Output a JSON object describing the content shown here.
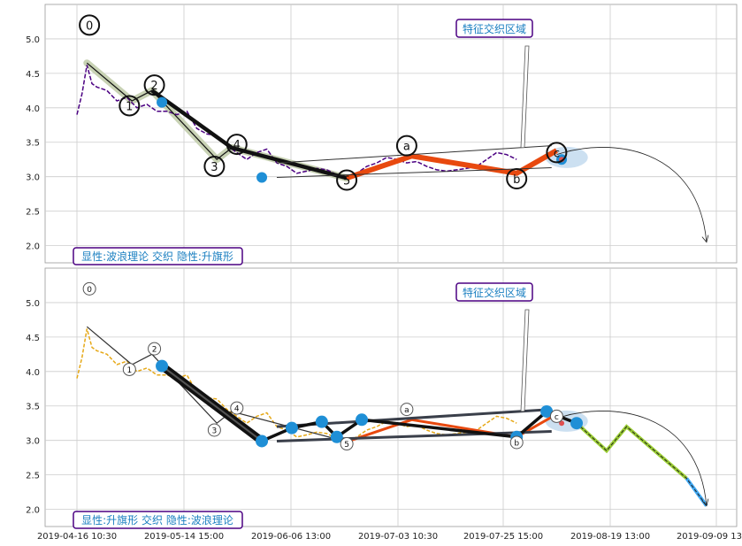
{
  "x_ticks": [
    "2019-04-16 10:30",
    "2019-05-14 15:00",
    "2019-06-06 13:00",
    "2019-07-03 10:30",
    "2019-07-25 15:00",
    "2019-08-19 13:00",
    "2019-09-09 13:00"
  ],
  "colors": {
    "top_price": "#4b0082",
    "bottom_price": "#e6a817",
    "wave_highlight": "#c8d2b4",
    "trend": "#111111",
    "wave_orange": "#e8490f",
    "marker_blue": "#1f8fd6",
    "label_text": "#1a7fc1",
    "label_border": "#4b0082",
    "future_green": "#9acd32",
    "future_blue": "#3fa9f5",
    "highlight_ellipse": "#aacbe8",
    "grid": "#cccccc"
  },
  "chart_data": [
    {
      "type": "line",
      "panel": "top",
      "annotation_box": "特征交织区域",
      "legend_box": "显性:波浪理论 交织 隐性:升旗形",
      "ylim": [
        1.75,
        5.5
      ],
      "yticks": [
        2.0,
        2.5,
        3.0,
        3.5,
        4.0,
        4.5,
        5.0
      ],
      "grid": true,
      "series": [
        {
          "values": [
            [
              0,
              3.9
            ],
            [
              1,
              4.2
            ],
            [
              2,
              4.62
            ],
            [
              3,
              4.35
            ],
            [
              4,
              4.3
            ],
            [
              6,
              4.25
            ],
            [
              8,
              4.1
            ],
            [
              10,
              4.15
            ],
            [
              12,
              4.0
            ],
            [
              14,
              4.05
            ],
            [
              16,
              3.95
            ],
            [
              18,
              3.95
            ],
            [
              20,
              3.9
            ],
            [
              22,
              3.95
            ],
            [
              24,
              3.7
            ],
            [
              26,
              3.62
            ],
            [
              28,
              3.6
            ],
            [
              30,
              3.45
            ],
            [
              32,
              3.35
            ],
            [
              34,
              3.25
            ],
            [
              36,
              3.35
            ],
            [
              38,
              3.4
            ],
            [
              40,
              3.2
            ],
            [
              42,
              3.15
            ],
            [
              44,
              3.05
            ],
            [
              46,
              3.08
            ],
            [
              48,
              3.12
            ],
            [
              50,
              3.1
            ],
            [
              52,
              3.03
            ],
            [
              54,
              2.98
            ],
            [
              56,
              3.05
            ],
            [
              58,
              3.15
            ],
            [
              60,
              3.2
            ],
            [
              62,
              3.28
            ],
            [
              64,
              3.25
            ],
            [
              66,
              3.2
            ],
            [
              68,
              3.22
            ],
            [
              70,
              3.15
            ],
            [
              72,
              3.1
            ],
            [
              74,
              3.08
            ],
            [
              76,
              3.1
            ],
            [
              78,
              3.12
            ],
            [
              80,
              3.15
            ],
            [
              82,
              3.25
            ],
            [
              84,
              3.35
            ],
            [
              86,
              3.32
            ],
            [
              88,
              3.25
            ]
          ]
        }
      ],
      "wave_points": {
        "labels": [
          "0",
          "1",
          "2",
          "3",
          "4",
          "5",
          "a",
          "b",
          "c"
        ],
        "x": [
          2,
          11,
          15,
          28,
          31,
          54,
          67,
          88,
          96
        ],
        "y": [
          4.65,
          4.1,
          4.25,
          3.25,
          3.42,
          2.98,
          3.3,
          3.05,
          3.38
        ]
      },
      "label_positions": {
        "x": [
          2.5,
          10.5,
          15.5,
          27.5,
          32,
          54,
          66,
          88,
          96
        ],
        "y": [
          5.2,
          4.03,
          4.33,
          3.15,
          3.47,
          2.95,
          3.45,
          2.97,
          3.35
        ]
      },
      "channel": {
        "upper": [
          [
            40,
            3.2
          ],
          [
            95,
            3.45
          ]
        ],
        "lower": [
          [
            40,
            2.99
          ],
          [
            95,
            3.13
          ]
        ]
      },
      "markers": [
        [
          17,
          4.08
        ],
        [
          37,
          2.99
        ],
        [
          97,
          3.25
        ]
      ],
      "projection": {
        "from": [
          96,
          3.32
        ],
        "to": [
          126,
          2.05
        ]
      }
    },
    {
      "type": "line",
      "panel": "bottom",
      "annotation_box": "特征交织区域",
      "legend_box": "显性:升旗形 交织 隐性:波浪理论",
      "ylim": [
        1.75,
        5.5
      ],
      "yticks": [
        2.0,
        2.5,
        3.0,
        3.5,
        4.0,
        4.5,
        5.0
      ],
      "grid": true,
      "series": [
        {
          "values": [
            [
              0,
              3.9
            ],
            [
              1,
              4.2
            ],
            [
              2,
              4.62
            ],
            [
              3,
              4.35
            ],
            [
              4,
              4.3
            ],
            [
              6,
              4.25
            ],
            [
              8,
              4.1
            ],
            [
              10,
              4.15
            ],
            [
              12,
              4.0
            ],
            [
              14,
              4.05
            ],
            [
              16,
              3.95
            ],
            [
              18,
              3.95
            ],
            [
              20,
              3.9
            ],
            [
              22,
              3.95
            ],
            [
              24,
              3.7
            ],
            [
              26,
              3.62
            ],
            [
              28,
              3.6
            ],
            [
              30,
              3.45
            ],
            [
              32,
              3.35
            ],
            [
              34,
              3.25
            ],
            [
              36,
              3.35
            ],
            [
              38,
              3.4
            ],
            [
              40,
              3.2
            ],
            [
              42,
              3.15
            ],
            [
              44,
              3.05
            ],
            [
              46,
              3.08
            ],
            [
              48,
              3.12
            ],
            [
              50,
              3.1
            ],
            [
              52,
              3.03
            ],
            [
              54,
              2.98
            ],
            [
              56,
              3.05
            ],
            [
              58,
              3.15
            ],
            [
              60,
              3.2
            ],
            [
              62,
              3.28
            ],
            [
              64,
              3.25
            ],
            [
              66,
              3.2
            ],
            [
              68,
              3.22
            ],
            [
              70,
              3.15
            ],
            [
              72,
              3.1
            ],
            [
              74,
              3.08
            ],
            [
              76,
              3.1
            ],
            [
              78,
              3.12
            ],
            [
              80,
              3.15
            ],
            [
              82,
              3.25
            ],
            [
              84,
              3.35
            ],
            [
              86,
              3.32
            ],
            [
              88,
              3.25
            ]
          ]
        }
      ],
      "wave_points": {
        "labels": [
          "0",
          "1",
          "2",
          "3",
          "4",
          "5",
          "a",
          "b",
          "c"
        ],
        "x": [
          2,
          11,
          15,
          28,
          31,
          54,
          67,
          88,
          96
        ],
        "y": [
          4.65,
          4.1,
          4.25,
          3.25,
          3.42,
          2.98,
          3.3,
          3.05,
          3.38
        ]
      },
      "label_positions": {
        "x": [
          2.5,
          10.5,
          15.5,
          27.5,
          32,
          54,
          66,
          88,
          96
        ],
        "y": [
          5.2,
          4.03,
          4.33,
          3.15,
          3.47,
          2.95,
          3.45,
          2.97,
          3.35
        ]
      },
      "channel": {
        "upper": [
          [
            40,
            3.2
          ],
          [
            95,
            3.45
          ]
        ],
        "lower": [
          [
            40,
            2.99
          ],
          [
            95,
            3.13
          ]
        ]
      },
      "markers": [
        [
          17,
          4.08
        ],
        [
          37,
          2.99
        ],
        [
          43,
          3.18
        ],
        [
          49,
          3.27
        ],
        [
          52,
          3.05
        ],
        [
          57,
          3.3
        ],
        [
          88,
          3.05
        ],
        [
          94,
          3.42
        ],
        [
          100,
          3.25
        ]
      ],
      "projection": {
        "from": [
          96,
          3.32
        ],
        "to": [
          126,
          2.05
        ]
      },
      "future_path": [
        [
          100,
          3.25
        ],
        [
          106,
          2.85
        ],
        [
          110,
          3.2
        ],
        [
          122,
          2.45
        ],
        [
          126,
          2.05
        ]
      ]
    }
  ]
}
